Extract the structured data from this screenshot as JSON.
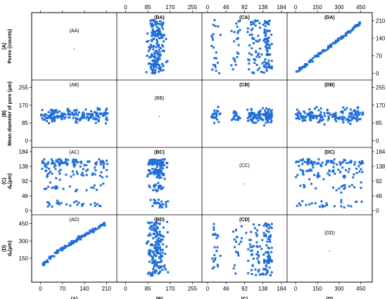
{
  "chart_data": {
    "type": "scatter",
    "variables": [
      {
        "code": "(A)",
        "name": "Pores (counts)",
        "ticks": [
          "0",
          "70",
          "140",
          "210"
        ],
        "range": [
          -10,
          225
        ]
      },
      {
        "code": "(B)",
        "name": "Mean diameter of pore (μm)",
        "ticks": [
          "0",
          "85",
          "170",
          "255"
        ],
        "range": [
          -12,
          270
        ]
      },
      {
        "code": "(C)",
        "name": "dₚ(μm)",
        "ticks": [
          "0",
          "46",
          "92",
          "138",
          "184"
        ],
        "range": [
          0,
          184
        ]
      },
      {
        "code": "(D)",
        "name": "dₚ(μm)",
        "ticks": [
          "0",
          "150",
          "300",
          "450"
        ],
        "range": [
          -20,
          490
        ]
      }
    ],
    "left_names": [
      "Pores (counts)",
      "Mean diameter of pore (μm)",
      "dₚ(μm)",
      "dₚ(μm)"
    ],
    "left_ticks": [
      [],
      [
        "0",
        "85",
        "170",
        "255"
      ],
      [
        "0",
        "46",
        "92",
        "138",
        "184"
      ],
      [
        "150",
        "300",
        "450"
      ]
    ],
    "cell_labels": [
      [
        "(AA)",
        "(BA)",
        "(CA)",
        "(DA)"
      ],
      [
        "(AB)",
        "(BB)",
        "(CB)",
        "(DB)"
      ],
      [
        "(AC)",
        "(BC)",
        "(CC)",
        "(DC)"
      ],
      [
        "(AD)",
        "(BD)",
        "(CD)",
        "(DD)"
      ]
    ],
    "marker_color": "#1f6fd8",
    "seed": 7,
    "pairs": [
      {
        "col": 1,
        "row": 0,
        "pattern": "cloud",
        "n": 180
      },
      {
        "col": 2,
        "row": 0,
        "pattern": "cloud",
        "n": 170
      },
      {
        "col": 3,
        "row": 0,
        "pattern": "trend",
        "n": 140
      },
      {
        "col": 0,
        "row": 1,
        "pattern": "cloud",
        "n": 170
      },
      {
        "col": 2,
        "row": 1,
        "pattern": "cloud",
        "n": 160
      },
      {
        "col": 3,
        "row": 1,
        "pattern": "cloud",
        "n": 160
      },
      {
        "col": 0,
        "row": 2,
        "pattern": "cloud",
        "n": 170
      },
      {
        "col": 1,
        "row": 2,
        "pattern": "cloud",
        "n": 170
      },
      {
        "col": 3,
        "row": 2,
        "pattern": "cloud",
        "n": 160
      },
      {
        "col": 0,
        "row": 3,
        "pattern": "trend",
        "n": 140
      },
      {
        "col": 1,
        "row": 3,
        "pattern": "cloud",
        "n": 170
      },
      {
        "col": 2,
        "row": 3,
        "pattern": "cloud",
        "n": 170
      }
    ]
  }
}
